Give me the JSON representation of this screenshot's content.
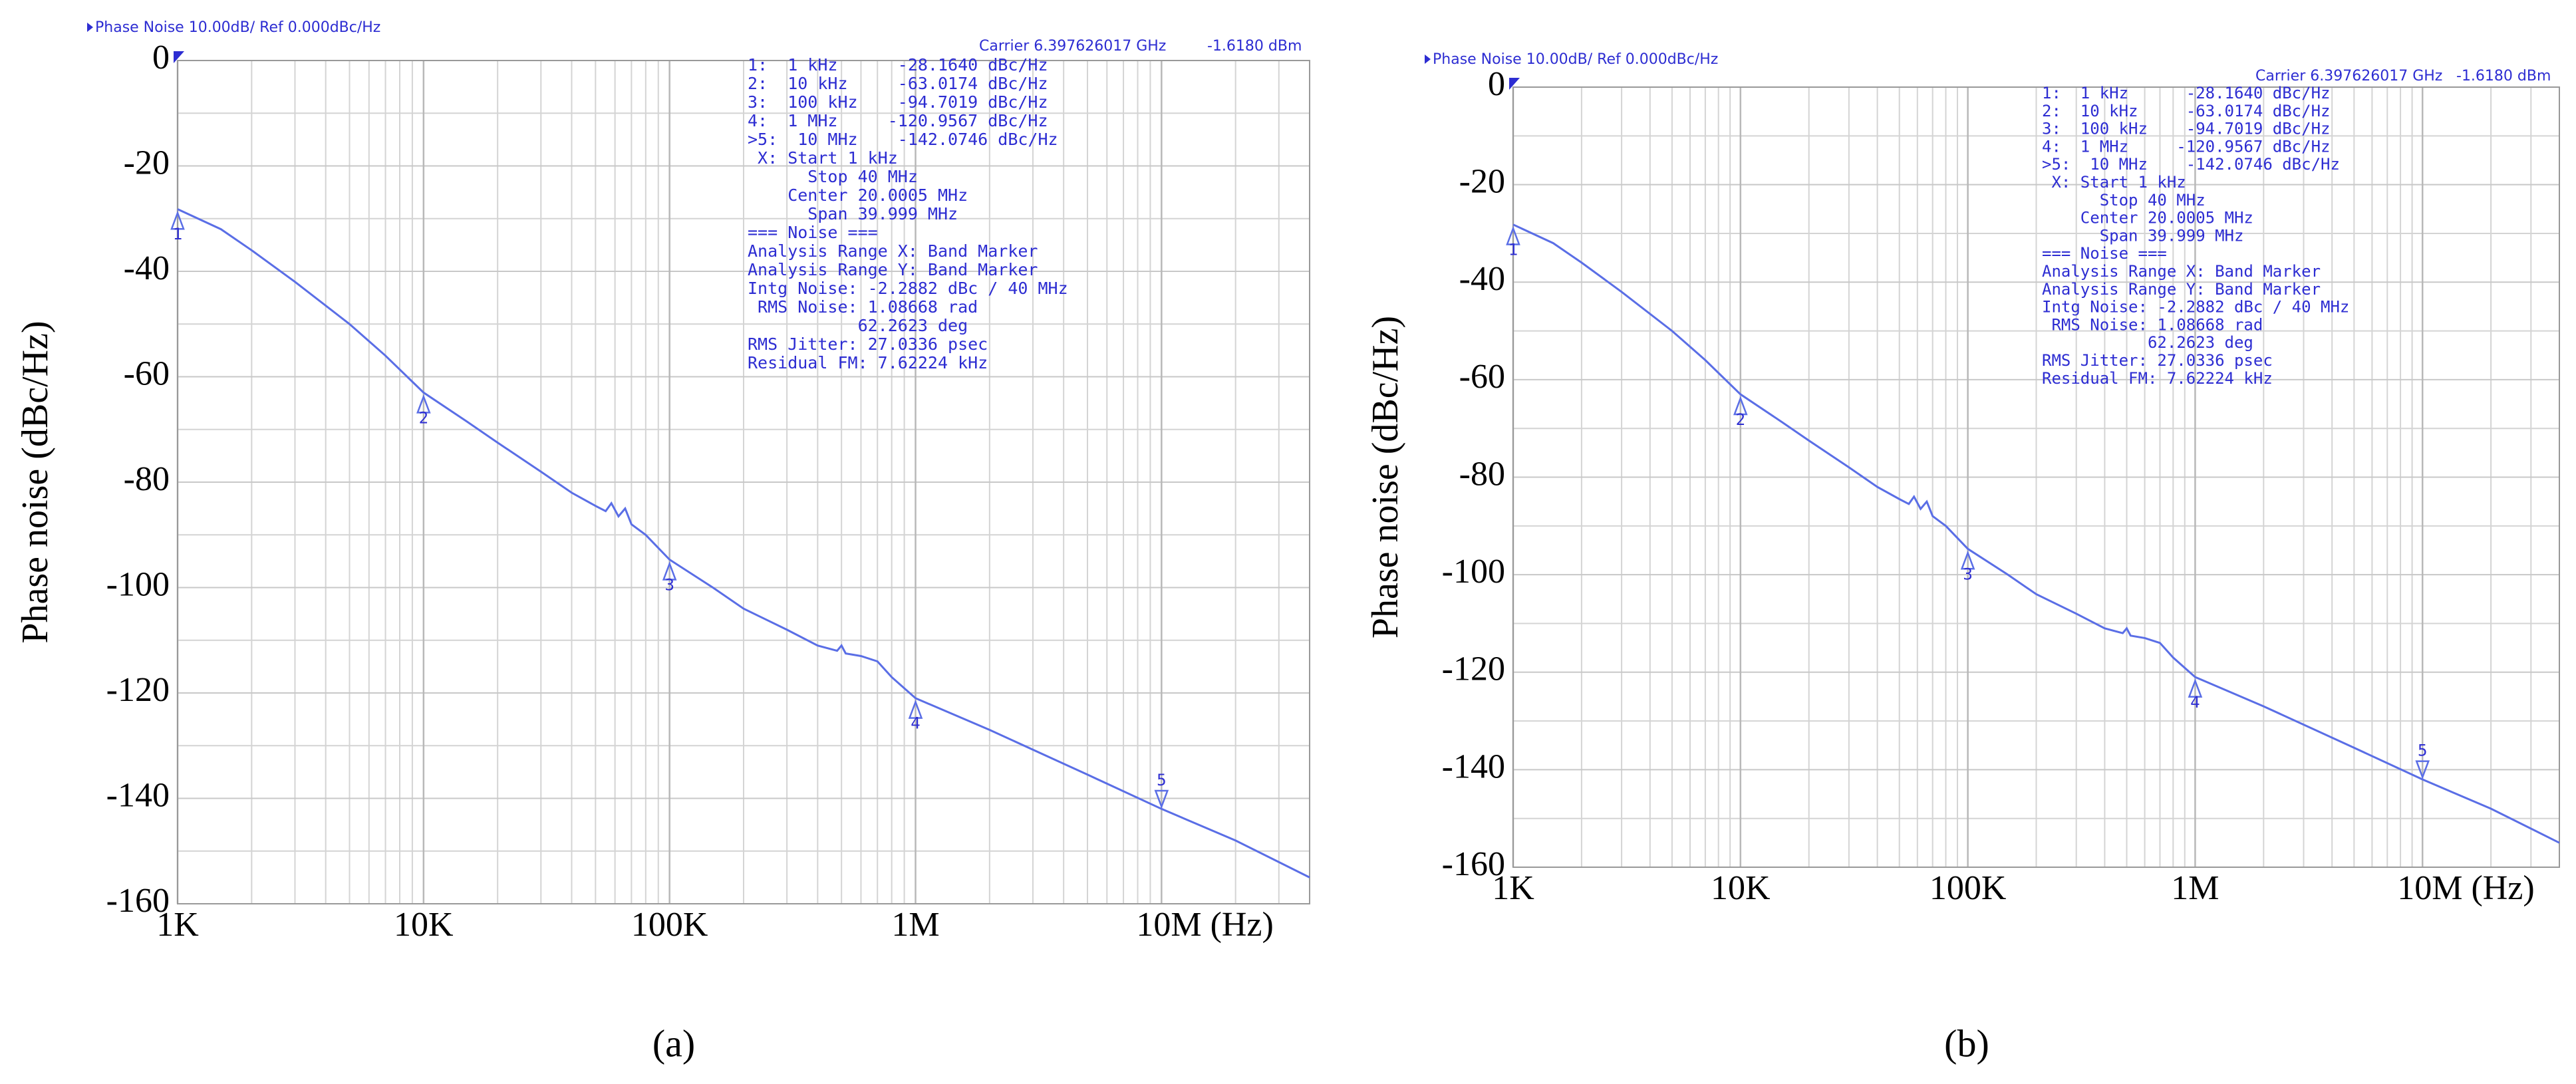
{
  "chart_data": [
    {
      "type": "line",
      "title": "Phase Noise 10.00dB/ Ref 0.000dBc/Hz",
      "carrier": "Carrier 6.397626017 GHz",
      "power": "-1.6180 dBm",
      "ylabel": "Phase noise (dBc/Hz)",
      "caption": "(a)",
      "log_x": true,
      "grid": true,
      "color": "#5a6ee6",
      "xlim": [
        1000,
        40000000
      ],
      "xticks": [
        {
          "value": 1000,
          "label": "1K"
        },
        {
          "value": 10000,
          "label": "10K"
        },
        {
          "value": 100000,
          "label": "100K"
        },
        {
          "value": 1000000,
          "label": "1M"
        },
        {
          "value": 10000000,
          "label": "10M (Hz)"
        }
      ],
      "ylim": [
        -160,
        0
      ],
      "yticks": [
        0,
        -20,
        -40,
        -60,
        -80,
        -100,
        -120,
        -140,
        -160
      ],
      "x": [
        1000,
        1500,
        2000,
        3000,
        5000,
        7000,
        10000,
        15000,
        20000,
        30000,
        40000,
        50000,
        55000,
        58000,
        62000,
        66000,
        70000,
        80000,
        100000,
        150000,
        200000,
        300000,
        400000,
        480000,
        500000,
        520000,
        600000,
        700000,
        800000,
        1000000,
        2000000,
        5000000,
        10000000,
        20000000,
        40000000
      ],
      "values": [
        -28.2,
        -32,
        -36,
        -42,
        -50,
        -56,
        -63,
        -68.5,
        -72.5,
        -78,
        -82,
        -84.5,
        -85.5,
        -84,
        -86.5,
        -85,
        -88,
        -90,
        -94.7,
        -100,
        -104,
        -108,
        -111,
        -112,
        -111,
        -112.5,
        -113,
        -114,
        -117,
        -121,
        -127,
        -135.5,
        -142,
        -148,
        -155
      ],
      "markers": {
        "x": [
          1000,
          10000,
          100000,
          1000000,
          10000000
        ],
        "values": [
          -28.164,
          -63.0174,
          -94.7019,
          -120.9567,
          -142.0746
        ],
        "labels": [
          "1",
          "2",
          "3",
          "4",
          "5"
        ]
      },
      "info": [
        "1:  1 kHz      -28.1640 dBc/Hz",
        "2:  10 kHz     -63.0174 dBc/Hz",
        "3:  100 kHz    -94.7019 dBc/Hz",
        "4:  1 MHz     -120.9567 dBc/Hz",
        ">5:  10 MHz    -142.0746 dBc/Hz",
        " X: Start 1 kHz",
        "      Stop 40 MHz",
        "    Center 20.0005 MHz",
        "      Span 39.999 MHz",
        "=== Noise ===",
        "Analysis Range X: Band Marker",
        "Analysis Range Y: Band Marker",
        "Intg Noise: -2.2882 dBc / 40 MHz",
        " RMS Noise: 1.08668 rad",
        "           62.2623 deg",
        "RMS Jitter: 27.0336 psec",
        "Residual FM: 7.62224 kHz"
      ]
    },
    {
      "type": "line",
      "title": "Phase Noise 10.00dB/ Ref 0.000dBc/Hz",
      "carrier": "Carrier 6.397626017 GHz",
      "power": "-1.6180 dBm",
      "ylabel": "Phase noise (dBc/Hz)",
      "caption": "(b)",
      "log_x": true,
      "grid": true,
      "color": "#5a6ee6",
      "xlim": [
        1000,
        40000000
      ],
      "xticks": [
        {
          "value": 1000,
          "label": "1K"
        },
        {
          "value": 10000,
          "label": "10K"
        },
        {
          "value": 100000,
          "label": "100K"
        },
        {
          "value": 1000000,
          "label": "1M"
        },
        {
          "value": 10000000,
          "label": "10M (Hz)"
        }
      ],
      "ylim": [
        -160,
        0
      ],
      "yticks": [
        0,
        -20,
        -40,
        -60,
        -80,
        -100,
        -120,
        -140,
        -160
      ],
      "x": [
        1000,
        1500,
        2000,
        3000,
        5000,
        7000,
        10000,
        15000,
        20000,
        30000,
        40000,
        50000,
        55000,
        58000,
        62000,
        66000,
        70000,
        80000,
        100000,
        150000,
        200000,
        300000,
        400000,
        480000,
        500000,
        520000,
        600000,
        700000,
        800000,
        1000000,
        2000000,
        5000000,
        10000000,
        20000000,
        40000000
      ],
      "values": [
        -28.2,
        -32,
        -36,
        -42,
        -50,
        -56,
        -63,
        -68.5,
        -72.5,
        -78,
        -82,
        -84.5,
        -85.5,
        -84,
        -86.5,
        -85,
        -88,
        -90,
        -94.7,
        -100,
        -104,
        -108,
        -111,
        -112,
        -111,
        -112.5,
        -113,
        -114,
        -117,
        -121,
        -127,
        -135.5,
        -142,
        -148,
        -155
      ],
      "markers": {
        "x": [
          1000,
          10000,
          100000,
          1000000,
          10000000
        ],
        "values": [
          -28.164,
          -63.0174,
          -94.7019,
          -120.9567,
          -142.0746
        ],
        "labels": [
          "1",
          "2",
          "3",
          "4",
          "5"
        ]
      },
      "info": [
        "1:  1 kHz      -28.1640 dBc/Hz",
        "2:  10 kHz     -63.0174 dBc/Hz",
        "3:  100 kHz    -94.7019 dBc/Hz",
        "4:  1 MHz     -120.9567 dBc/Hz",
        ">5:  10 MHz    -142.0746 dBc/Hz",
        " X: Start 1 kHz",
        "      Stop 40 MHz",
        "    Center 20.0005 MHz",
        "      Span 39.999 MHz",
        "=== Noise ===",
        "Analysis Range X: Band Marker",
        "Analysis Range Y: Band Marker",
        "Intg Noise: -2.2882 dBc / 40 MHz",
        " RMS Noise: 1.08668 rad",
        "           62.2623 deg",
        "RMS Jitter: 27.0336 psec",
        "Residual FM: 7.62224 kHz"
      ]
    }
  ]
}
